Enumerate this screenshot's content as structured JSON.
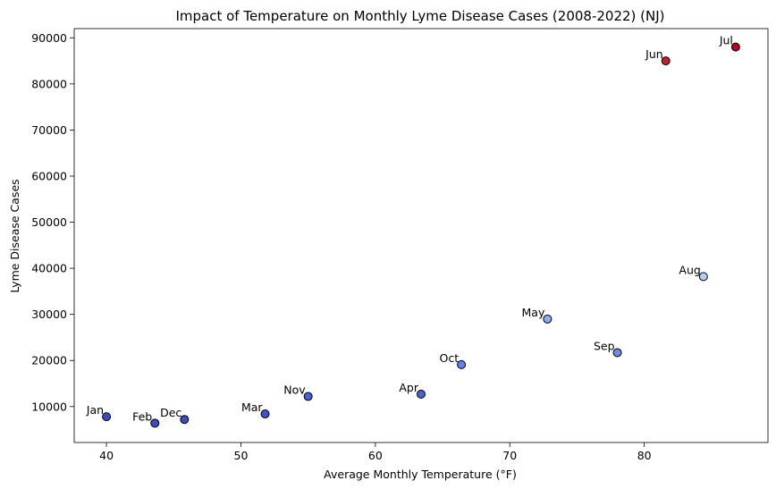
{
  "chart_data": {
    "type": "scatter",
    "title": "Impact of Temperature on Monthly Lyme Disease Cases (2008-2022) (NJ)",
    "xlabel": "Average Monthly Temperature (°F)",
    "ylabel": "Lyme Disease Cases",
    "xlim": [
      37.6,
      89.2
    ],
    "ylim": [
      2200,
      92000
    ],
    "xticks": [
      40,
      50,
      60,
      70,
      80
    ],
    "yticks": [
      10000,
      20000,
      30000,
      40000,
      50000,
      60000,
      70000,
      80000,
      90000
    ],
    "grid": false,
    "colormap": "coolwarm",
    "points": [
      {
        "label": "Jan",
        "x": 40.0,
        "y": 7800,
        "color": "#3b4cc0"
      },
      {
        "label": "Feb",
        "x": 43.6,
        "y": 6400,
        "color": "#3b4cc0"
      },
      {
        "label": "Mar",
        "x": 51.8,
        "y": 8400,
        "color": "#3f53c6"
      },
      {
        "label": "Apr",
        "x": 63.4,
        "y": 12700,
        "color": "#4961d2"
      },
      {
        "label": "May",
        "x": 72.8,
        "y": 29000,
        "color": "#89acfd"
      },
      {
        "label": "Jun",
        "x": 81.6,
        "y": 85000,
        "color": "#c5202a"
      },
      {
        "label": "Jul",
        "x": 86.8,
        "y": 88000,
        "color": "#b40426"
      },
      {
        "label": "Aug",
        "x": 84.4,
        "y": 38200,
        "color": "#b3cdfb"
      },
      {
        "label": "Sep",
        "x": 78.0,
        "y": 21700,
        "color": "#6a8bef"
      },
      {
        "label": "Oct",
        "x": 66.4,
        "y": 19100,
        "color": "#6282ea"
      },
      {
        "label": "Nov",
        "x": 55.0,
        "y": 12200,
        "color": "#4961d2"
      },
      {
        "label": "Dec",
        "x": 45.8,
        "y": 7200,
        "color": "#3b4cc0"
      }
    ]
  }
}
